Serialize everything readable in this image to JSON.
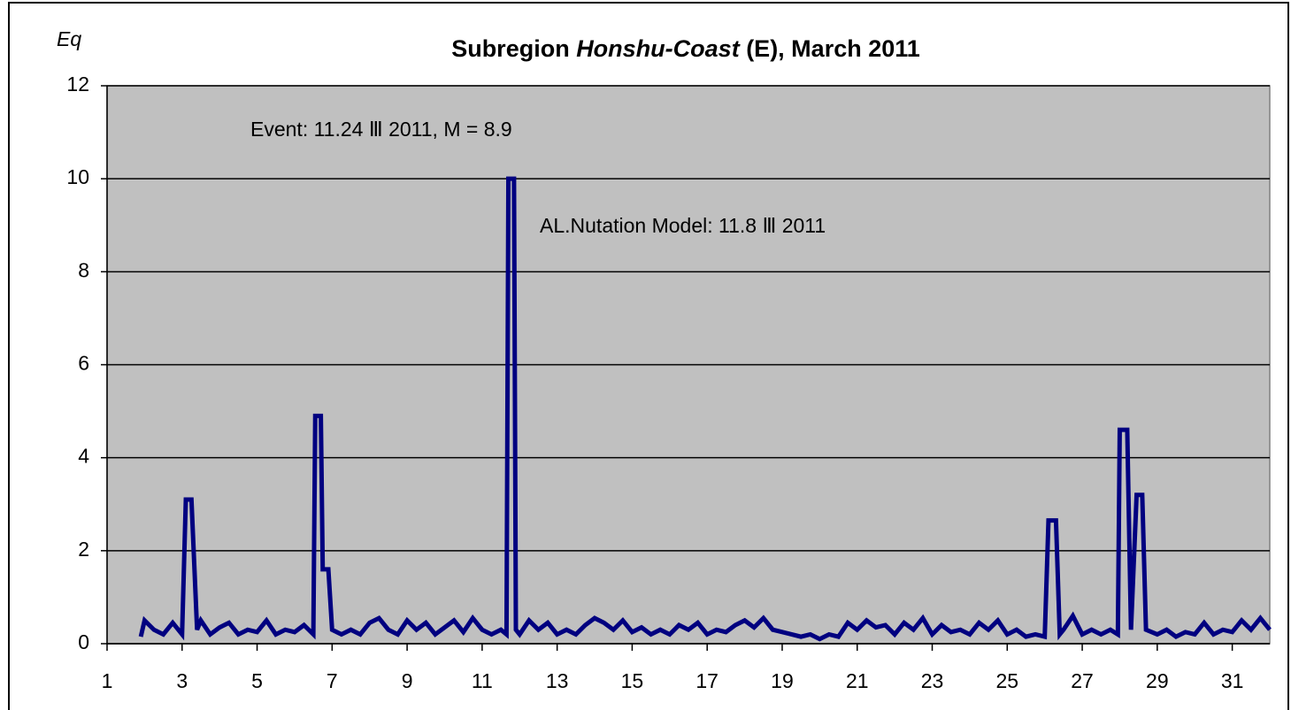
{
  "chart_data": {
    "type": "line",
    "title_parts": [
      "Subregion ",
      "Honshu-Coast",
      " (E), March 2011"
    ],
    "y_label": "Eq",
    "annotations": [
      "Event:  11.24 Ⅲ 2011,   M = 8.9",
      "AL.Nutation Model: 11.8 Ⅲ 2011"
    ],
    "xlim": [
      1,
      32
    ],
    "xticks": [
      1,
      3,
      5,
      7,
      9,
      11,
      13,
      15,
      17,
      19,
      21,
      23,
      25,
      27,
      29,
      31
    ],
    "ylim": [
      0,
      12
    ],
    "yticks": [
      0,
      2,
      4,
      6,
      8,
      10,
      12
    ],
    "grid": true,
    "background": "#c0c0c0",
    "series": [
      {
        "color": "#000080",
        "x": [
          1.9,
          2,
          2.25,
          2.5,
          2.75,
          3,
          3.1,
          3.25,
          3.4,
          3.5,
          3.75,
          4,
          4.25,
          4.5,
          4.75,
          5,
          5.25,
          5.5,
          5.75,
          6,
          6.25,
          6.5,
          6.55,
          6.7,
          6.75,
          6.9,
          7,
          7.25,
          7.5,
          7.75,
          8,
          8.25,
          8.5,
          8.75,
          9,
          9.25,
          9.5,
          9.75,
          10,
          10.25,
          10.5,
          10.75,
          11,
          11.25,
          11.5,
          11.65,
          11.7,
          11.85,
          11.9,
          12,
          12.25,
          12.5,
          12.75,
          13,
          13.25,
          13.5,
          13.75,
          14,
          14.25,
          14.5,
          14.75,
          15,
          15.25,
          15.5,
          15.75,
          16,
          16.25,
          16.5,
          16.75,
          17,
          17.25,
          17.5,
          17.75,
          18,
          18.25,
          18.5,
          18.75,
          19,
          19.25,
          19.5,
          19.75,
          20,
          20.25,
          20.5,
          20.75,
          21,
          21.25,
          21.5,
          21.75,
          22,
          22.25,
          22.5,
          22.75,
          23,
          23.25,
          23.5,
          23.75,
          24,
          24.25,
          24.5,
          24.75,
          25,
          25.25,
          25.5,
          25.75,
          26,
          26.1,
          26.3,
          26.4,
          26.5,
          26.75,
          27,
          27.25,
          27.5,
          27.75,
          27.95,
          28,
          28.2,
          28.3,
          28.45,
          28.6,
          28.7,
          29,
          29.25,
          29.5,
          29.75,
          30,
          30.25,
          30.5,
          30.75,
          31,
          31.25,
          31.5,
          31.75,
          32
        ],
        "values": [
          0.15,
          0.5,
          0.3,
          0.2,
          0.45,
          0.2,
          3.1,
          3.1,
          0.3,
          0.5,
          0.2,
          0.35,
          0.45,
          0.2,
          0.3,
          0.25,
          0.5,
          0.2,
          0.3,
          0.25,
          0.4,
          0.2,
          4.9,
          4.9,
          1.6,
          1.6,
          0.3,
          0.2,
          0.3,
          0.2,
          0.45,
          0.55,
          0.3,
          0.2,
          0.5,
          0.3,
          0.45,
          0.2,
          0.35,
          0.5,
          0.25,
          0.55,
          0.3,
          0.2,
          0.3,
          0.2,
          10,
          10,
          0.3,
          0.2,
          0.5,
          0.3,
          0.45,
          0.2,
          0.3,
          0.2,
          0.4,
          0.55,
          0.45,
          0.3,
          0.5,
          0.25,
          0.35,
          0.2,
          0.3,
          0.2,
          0.4,
          0.3,
          0.45,
          0.2,
          0.3,
          0.25,
          0.4,
          0.5,
          0.35,
          0.55,
          0.3,
          0.25,
          0.2,
          0.15,
          0.2,
          0.1,
          0.2,
          0.15,
          0.45,
          0.3,
          0.5,
          0.35,
          0.4,
          0.2,
          0.45,
          0.3,
          0.55,
          0.2,
          0.4,
          0.25,
          0.3,
          0.2,
          0.45,
          0.3,
          0.5,
          0.2,
          0.3,
          0.15,
          0.2,
          0.15,
          2.65,
          2.65,
          0.2,
          0.3,
          0.6,
          0.2,
          0.3,
          0.2,
          0.3,
          0.2,
          4.6,
          4.6,
          0.3,
          3.2,
          3.2,
          0.3,
          0.2,
          0.3,
          0.15,
          0.25,
          0.2,
          0.45,
          0.2,
          0.3,
          0.25,
          0.5,
          0.3,
          0.55,
          0.3
        ]
      }
    ]
  }
}
